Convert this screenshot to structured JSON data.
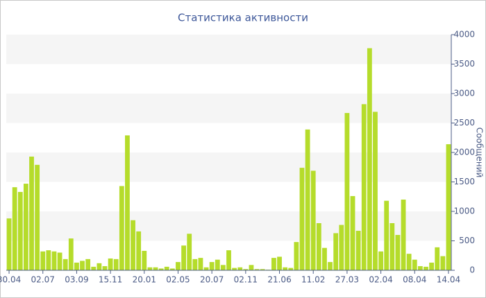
{
  "chart_data": {
    "type": "bar",
    "title": "Статистика активности",
    "y_label": "Сообщений",
    "categories": [
      "30.04",
      null,
      null,
      null,
      null,
      null,
      "02.07",
      null,
      null,
      null,
      null,
      null,
      "03.09",
      null,
      null,
      null,
      null,
      null,
      "15.11",
      null,
      null,
      null,
      null,
      null,
      "20.01",
      null,
      null,
      null,
      null,
      null,
      "02.05",
      null,
      null,
      null,
      null,
      null,
      "20.07",
      null,
      null,
      null,
      null,
      null,
      "02.11",
      null,
      null,
      null,
      null,
      null,
      "21.06",
      null,
      null,
      null,
      null,
      null,
      "11.02",
      null,
      null,
      null,
      null,
      null,
      "27.03",
      null,
      null,
      null,
      null,
      null,
      "02.04",
      null,
      null,
      null,
      null,
      null,
      "08.04",
      null,
      null,
      null,
      null,
      null,
      "14.04"
    ],
    "values": [
      880,
      1410,
      1330,
      1470,
      1930,
      1790,
      320,
      340,
      320,
      300,
      190,
      540,
      130,
      160,
      190,
      60,
      120,
      70,
      200,
      190,
      1430,
      2290,
      850,
      660,
      330,
      50,
      50,
      30,
      60,
      30,
      140,
      420,
      620,
      190,
      210,
      50,
      140,
      180,
      90,
      340,
      40,
      50,
      20,
      90,
      20,
      20,
      10,
      210,
      230,
      50,
      40,
      480,
      1740,
      2390,
      1690,
      800,
      380,
      140,
      630,
      770,
      2670,
      1260,
      670,
      2820,
      3770,
      2690,
      320,
      1180,
      800,
      600,
      1200,
      280,
      180,
      70,
      60,
      130,
      390,
      240,
      2140
    ],
    "color": "#b5dc2b",
    "ylim": [
      0,
      4000
    ],
    "yticks": [
      0,
      500,
      1000,
      1500,
      2000,
      2500,
      3000,
      3500,
      4000
    ],
    "y_axis_side": "right",
    "grid": "bands"
  }
}
